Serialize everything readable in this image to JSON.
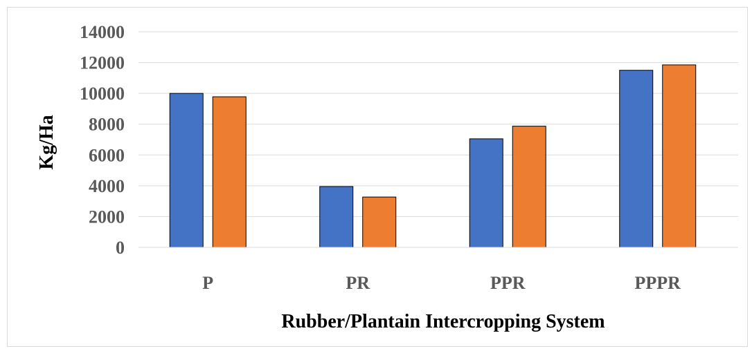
{
  "chart_data": {
    "type": "bar",
    "categories": [
      "P",
      "PR",
      "PPR",
      "PPPR"
    ],
    "series": [
      {
        "values": [
          10000,
          3950,
          7050,
          11500
        ],
        "color": "#4472c4"
      },
      {
        "values": [
          9780,
          3270,
          7870,
          11850
        ],
        "color": "#ed7d31"
      }
    ],
    "y_ticks": [
      "0",
      "2000",
      "4000",
      "6000",
      "8000",
      "10000",
      "12000",
      "14000"
    ],
    "ylim": [
      0,
      14000
    ],
    "xlabel": "Rubber/Plantain Intercropping System",
    "ylabel": "Kg/Ha",
    "grid": true,
    "legend": false
  }
}
